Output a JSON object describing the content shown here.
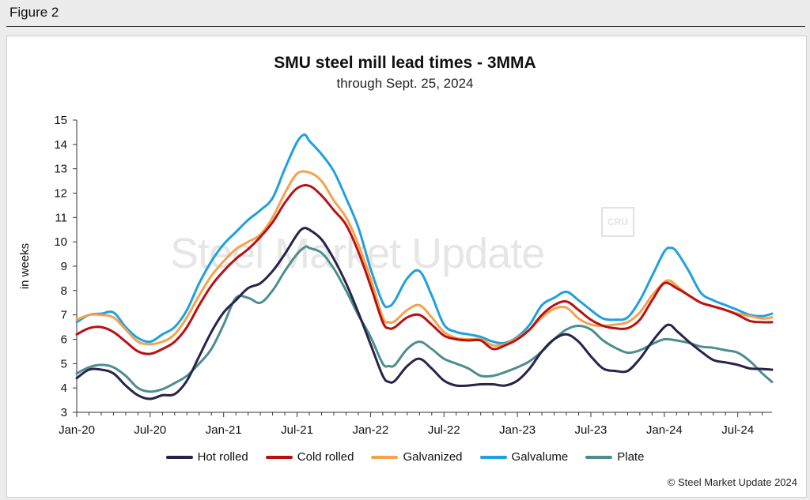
{
  "figure_label": "Figure 2",
  "watermark": {
    "brand": "Steel Market Update",
    "logo_text": "CRU"
  },
  "copyright": "© Steel Market Update 2024",
  "chart_data": {
    "type": "line",
    "title": "SMU steel mill lead times - 3MMA",
    "subtitle": "through Sept. 25, 2024",
    "ylabel": "in weeks",
    "xlabel": "",
    "ylim": [
      3,
      15
    ],
    "yticks": [
      3,
      4,
      5,
      6,
      7,
      8,
      9,
      10,
      11,
      12,
      13,
      14,
      15
    ],
    "x_tick_labels": [
      "Jan-20",
      "Jul-20",
      "Jan-21",
      "Jul-21",
      "Jan-22",
      "Jul-22",
      "Jan-23",
      "Jul-23",
      "Jan-24",
      "Jul-24"
    ],
    "x_tick_months": [
      0,
      6,
      12,
      18,
      24,
      30,
      36,
      42,
      48,
      54
    ],
    "x_range_months": [
      0,
      56.8
    ],
    "legend_position": "bottom",
    "grid": false,
    "series": [
      {
        "name": "Hot rolled",
        "color": "#27234a",
        "points": [
          [
            0,
            4.4
          ],
          [
            1,
            4.75
          ],
          [
            2,
            4.75
          ],
          [
            3,
            4.6
          ],
          [
            4,
            4.1
          ],
          [
            5,
            3.7
          ],
          [
            6,
            3.55
          ],
          [
            7,
            3.7
          ],
          [
            8,
            3.75
          ],
          [
            9,
            4.3
          ],
          [
            10,
            5.3
          ],
          [
            11,
            6.3
          ],
          [
            12,
            7.1
          ],
          [
            13,
            7.6
          ],
          [
            14,
            8.1
          ],
          [
            15,
            8.3
          ],
          [
            16,
            8.8
          ],
          [
            17,
            9.5
          ],
          [
            18,
            10.3
          ],
          [
            18.5,
            10.55
          ],
          [
            19,
            10.5
          ],
          [
            20,
            10.1
          ],
          [
            21,
            9.3
          ],
          [
            22,
            8.3
          ],
          [
            23,
            7.1
          ],
          [
            24,
            5.8
          ],
          [
            25,
            4.5
          ],
          [
            25.5,
            4.25
          ],
          [
            26,
            4.3
          ],
          [
            27,
            4.9
          ],
          [
            28,
            5.2
          ],
          [
            29,
            4.8
          ],
          [
            30,
            4.3
          ],
          [
            31,
            4.1
          ],
          [
            32,
            4.1
          ],
          [
            33,
            4.15
          ],
          [
            34,
            4.15
          ],
          [
            35,
            4.1
          ],
          [
            36,
            4.3
          ],
          [
            37,
            4.8
          ],
          [
            38,
            5.5
          ],
          [
            39,
            6.0
          ],
          [
            40,
            6.2
          ],
          [
            41,
            5.9
          ],
          [
            42,
            5.3
          ],
          [
            43,
            4.8
          ],
          [
            44,
            4.7
          ],
          [
            45,
            4.7
          ],
          [
            46,
            5.2
          ],
          [
            47,
            5.9
          ],
          [
            48,
            6.5
          ],
          [
            48.5,
            6.58
          ],
          [
            49,
            6.35
          ],
          [
            50,
            5.9
          ],
          [
            51,
            5.5
          ],
          [
            52,
            5.15
          ],
          [
            53,
            5.05
          ],
          [
            54,
            4.95
          ],
          [
            55,
            4.8
          ],
          [
            56,
            4.78
          ],
          [
            56.8,
            4.75
          ]
        ]
      },
      {
        "name": "Cold rolled",
        "color": "#b81114",
        "points": [
          [
            0,
            6.2
          ],
          [
            1,
            6.45
          ],
          [
            2,
            6.5
          ],
          [
            3,
            6.3
          ],
          [
            4,
            5.9
          ],
          [
            5,
            5.5
          ],
          [
            6,
            5.4
          ],
          [
            7,
            5.6
          ],
          [
            8,
            5.9
          ],
          [
            9,
            6.5
          ],
          [
            10,
            7.4
          ],
          [
            11,
            8.2
          ],
          [
            12,
            8.8
          ],
          [
            13,
            9.3
          ],
          [
            14,
            9.7
          ],
          [
            15,
            10.2
          ],
          [
            16,
            10.8
          ],
          [
            17,
            11.6
          ],
          [
            18,
            12.2
          ],
          [
            19,
            12.3
          ],
          [
            20,
            11.9
          ],
          [
            21,
            11.3
          ],
          [
            22,
            10.7
          ],
          [
            23,
            9.6
          ],
          [
            24,
            8.2
          ],
          [
            25,
            6.7
          ],
          [
            25.5,
            6.45
          ],
          [
            26,
            6.5
          ],
          [
            27,
            6.9
          ],
          [
            28,
            7.0
          ],
          [
            29,
            6.6
          ],
          [
            30,
            6.15
          ],
          [
            31,
            6.0
          ],
          [
            32,
            5.95
          ],
          [
            33,
            5.95
          ],
          [
            34,
            5.6
          ],
          [
            35,
            5.75
          ],
          [
            36,
            6.0
          ],
          [
            37,
            6.4
          ],
          [
            38,
            7.0
          ],
          [
            39,
            7.4
          ],
          [
            40,
            7.55
          ],
          [
            41,
            7.2
          ],
          [
            42,
            6.8
          ],
          [
            43,
            6.55
          ],
          [
            44,
            6.45
          ],
          [
            45,
            6.45
          ],
          [
            46,
            6.8
          ],
          [
            47,
            7.6
          ],
          [
            48,
            8.3
          ],
          [
            49,
            8.1
          ],
          [
            50,
            7.8
          ],
          [
            51,
            7.5
          ],
          [
            52,
            7.35
          ],
          [
            53,
            7.2
          ],
          [
            54,
            7.0
          ],
          [
            55,
            6.75
          ],
          [
            56,
            6.7
          ],
          [
            56.8,
            6.7
          ]
        ]
      },
      {
        "name": "Galvanized",
        "color": "#f4a24e",
        "points": [
          [
            0,
            6.8
          ],
          [
            1,
            7.0
          ],
          [
            2,
            7.0
          ],
          [
            3,
            6.9
          ],
          [
            4,
            6.4
          ],
          [
            5,
            5.9
          ],
          [
            6,
            5.8
          ],
          [
            7,
            5.9
          ],
          [
            8,
            6.2
          ],
          [
            9,
            6.9
          ],
          [
            10,
            7.8
          ],
          [
            11,
            8.6
          ],
          [
            12,
            9.2
          ],
          [
            13,
            9.7
          ],
          [
            14,
            10.0
          ],
          [
            15,
            10.3
          ],
          [
            16,
            11.0
          ],
          [
            17,
            12.0
          ],
          [
            18,
            12.8
          ],
          [
            19,
            12.85
          ],
          [
            20,
            12.5
          ],
          [
            21,
            11.7
          ],
          [
            22,
            11.0
          ],
          [
            23,
            9.9
          ],
          [
            24,
            8.5
          ],
          [
            25,
            6.9
          ],
          [
            25.5,
            6.7
          ],
          [
            26,
            6.75
          ],
          [
            27,
            7.2
          ],
          [
            28,
            7.4
          ],
          [
            29,
            6.9
          ],
          [
            30,
            6.3
          ],
          [
            31,
            6.05
          ],
          [
            32,
            6.0
          ],
          [
            33,
            6.0
          ],
          [
            34,
            5.75
          ],
          [
            35,
            5.8
          ],
          [
            36,
            6.05
          ],
          [
            37,
            6.4
          ],
          [
            38,
            6.9
          ],
          [
            39,
            7.25
          ],
          [
            40,
            7.3
          ],
          [
            41,
            6.85
          ],
          [
            42,
            6.6
          ],
          [
            43,
            6.55
          ],
          [
            44,
            6.6
          ],
          [
            45,
            6.7
          ],
          [
            46,
            7.1
          ],
          [
            47,
            7.8
          ],
          [
            48,
            8.35
          ],
          [
            48.5,
            8.4
          ],
          [
            49,
            8.2
          ],
          [
            50,
            7.8
          ],
          [
            51,
            7.5
          ],
          [
            52,
            7.35
          ],
          [
            53,
            7.2
          ],
          [
            54,
            7.05
          ],
          [
            55,
            6.95
          ],
          [
            56,
            6.85
          ],
          [
            56.8,
            6.9
          ]
        ]
      },
      {
        "name": "Galvalume",
        "color": "#20a0dd",
        "points": [
          [
            0,
            6.7
          ],
          [
            1,
            7.0
          ],
          [
            2,
            7.05
          ],
          [
            3,
            7.1
          ],
          [
            4,
            6.5
          ],
          [
            5,
            6.05
          ],
          [
            6,
            5.9
          ],
          [
            7,
            6.2
          ],
          [
            8,
            6.5
          ],
          [
            9,
            7.2
          ],
          [
            10,
            8.3
          ],
          [
            11,
            9.2
          ],
          [
            12,
            9.9
          ],
          [
            13,
            10.4
          ],
          [
            14,
            10.9
          ],
          [
            15,
            11.3
          ],
          [
            16,
            11.8
          ],
          [
            17,
            13.0
          ],
          [
            18,
            14.1
          ],
          [
            18.6,
            14.4
          ],
          [
            19,
            14.15
          ],
          [
            20,
            13.6
          ],
          [
            21,
            12.9
          ],
          [
            22,
            11.8
          ],
          [
            23,
            10.6
          ],
          [
            24,
            8.9
          ],
          [
            25,
            7.5
          ],
          [
            25.5,
            7.35
          ],
          [
            26,
            7.6
          ],
          [
            27,
            8.5
          ],
          [
            28,
            8.8
          ],
          [
            29,
            7.8
          ],
          [
            30,
            6.6
          ],
          [
            31,
            6.3
          ],
          [
            32,
            6.2
          ],
          [
            33,
            6.1
          ],
          [
            34,
            5.9
          ],
          [
            35,
            5.85
          ],
          [
            36,
            6.1
          ],
          [
            37,
            6.6
          ],
          [
            38,
            7.4
          ],
          [
            39,
            7.7
          ],
          [
            40,
            7.95
          ],
          [
            41,
            7.6
          ],
          [
            42,
            7.2
          ],
          [
            43,
            6.85
          ],
          [
            44,
            6.8
          ],
          [
            45,
            6.9
          ],
          [
            46,
            7.6
          ],
          [
            47,
            8.6
          ],
          [
            48,
            9.6
          ],
          [
            48.5,
            9.75
          ],
          [
            49,
            9.6
          ],
          [
            50,
            8.8
          ],
          [
            51,
            7.9
          ],
          [
            52,
            7.6
          ],
          [
            53,
            7.4
          ],
          [
            54,
            7.2
          ],
          [
            55,
            7.0
          ],
          [
            56,
            6.95
          ],
          [
            56.8,
            7.05
          ]
        ]
      },
      {
        "name": "Plate",
        "color": "#4e8d8f",
        "points": [
          [
            0,
            4.6
          ],
          [
            1,
            4.85
          ],
          [
            2,
            4.95
          ],
          [
            3,
            4.85
          ],
          [
            4,
            4.5
          ],
          [
            5,
            4.0
          ],
          [
            6,
            3.85
          ],
          [
            7,
            3.95
          ],
          [
            8,
            4.2
          ],
          [
            9,
            4.5
          ],
          [
            10,
            5.0
          ],
          [
            11,
            5.6
          ],
          [
            12,
            6.6
          ],
          [
            13,
            7.7
          ],
          [
            14,
            7.7
          ],
          [
            15,
            7.5
          ],
          [
            16,
            8.0
          ],
          [
            17,
            8.8
          ],
          [
            18,
            9.5
          ],
          [
            18.7,
            9.8
          ],
          [
            19,
            9.75
          ],
          [
            20,
            9.55
          ],
          [
            21,
            8.9
          ],
          [
            22,
            8.0
          ],
          [
            23,
            7.0
          ],
          [
            24,
            6.1
          ],
          [
            25,
            5.0
          ],
          [
            25.5,
            4.9
          ],
          [
            26,
            4.95
          ],
          [
            27,
            5.6
          ],
          [
            28,
            5.9
          ],
          [
            29,
            5.6
          ],
          [
            30,
            5.2
          ],
          [
            31,
            5.0
          ],
          [
            32,
            4.8
          ],
          [
            33,
            4.5
          ],
          [
            34,
            4.5
          ],
          [
            35,
            4.65
          ],
          [
            36,
            4.85
          ],
          [
            37,
            5.1
          ],
          [
            38,
            5.5
          ],
          [
            39,
            6.0
          ],
          [
            40,
            6.4
          ],
          [
            41,
            6.55
          ],
          [
            42,
            6.4
          ],
          [
            43,
            5.95
          ],
          [
            44,
            5.65
          ],
          [
            45,
            5.45
          ],
          [
            46,
            5.55
          ],
          [
            47,
            5.8
          ],
          [
            48,
            6.0
          ],
          [
            49,
            5.95
          ],
          [
            50,
            5.85
          ],
          [
            51,
            5.7
          ],
          [
            52,
            5.65
          ],
          [
            53,
            5.55
          ],
          [
            54,
            5.45
          ],
          [
            55,
            5.1
          ],
          [
            56,
            4.6
          ],
          [
            56.8,
            4.25
          ]
        ]
      }
    ]
  }
}
